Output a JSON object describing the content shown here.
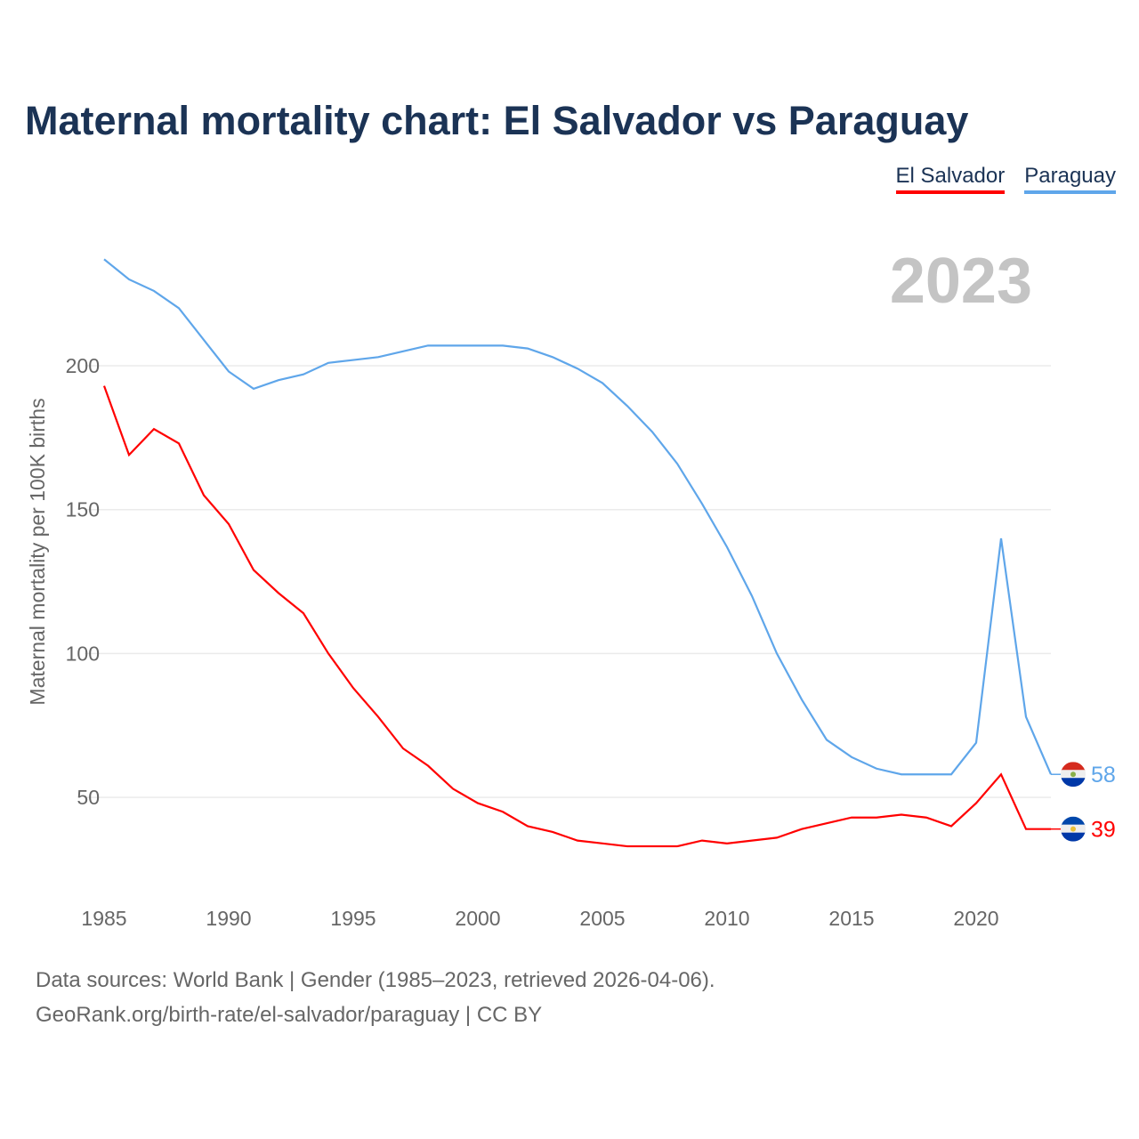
{
  "chart_data": {
    "type": "line",
    "title": "Maternal mortality chart: El Salvador vs Paraguay",
    "ylabel": "Maternal mortality per 100K births",
    "xlabel": "",
    "year_label": "2023",
    "xlim": [
      1985,
      2023
    ],
    "ylim": [
      20,
      245
    ],
    "x_ticks": [
      1985,
      1990,
      1995,
      2000,
      2005,
      2010,
      2015,
      2020
    ],
    "y_ticks": [
      50,
      100,
      150,
      200
    ],
    "grid": true,
    "legend_position": "top-right",
    "x": [
      1985,
      1986,
      1987,
      1988,
      1989,
      1990,
      1991,
      1992,
      1993,
      1994,
      1995,
      1996,
      1997,
      1998,
      1999,
      2000,
      2001,
      2002,
      2003,
      2004,
      2005,
      2006,
      2007,
      2008,
      2009,
      2010,
      2011,
      2012,
      2013,
      2014,
      2015,
      2016,
      2017,
      2018,
      2019,
      2020,
      2021,
      2022,
      2023
    ],
    "series": [
      {
        "name": "El Salvador",
        "color": "#ff0000",
        "end_label": "39",
        "values": [
          193,
          169,
          178,
          173,
          155,
          145,
          129,
          121,
          114,
          100,
          88,
          78,
          67,
          61,
          53,
          48,
          45,
          40,
          38,
          35,
          34,
          33,
          33,
          33,
          35,
          34,
          35,
          36,
          39,
          41,
          43,
          43,
          44,
          43,
          40,
          48,
          58,
          39,
          39
        ]
      },
      {
        "name": "Paraguay",
        "color": "#5fa6ea",
        "end_label": "58",
        "values": [
          237,
          230,
          226,
          220,
          209,
          198,
          192,
          195,
          197,
          201,
          202,
          203,
          205,
          207,
          207,
          207,
          207,
          206,
          203,
          199,
          194,
          186,
          177,
          166,
          152,
          137,
          120,
          100,
          84,
          70,
          64,
          60,
          58,
          58,
          58,
          69,
          140,
          78,
          58
        ]
      }
    ]
  },
  "footer": {
    "line1": "Data sources: World Bank | Gender (1985–2023, retrieved 2026-04-06).",
    "line2": "GeoRank.org/birth-rate/el-salvador/paraguay | CC BY"
  }
}
